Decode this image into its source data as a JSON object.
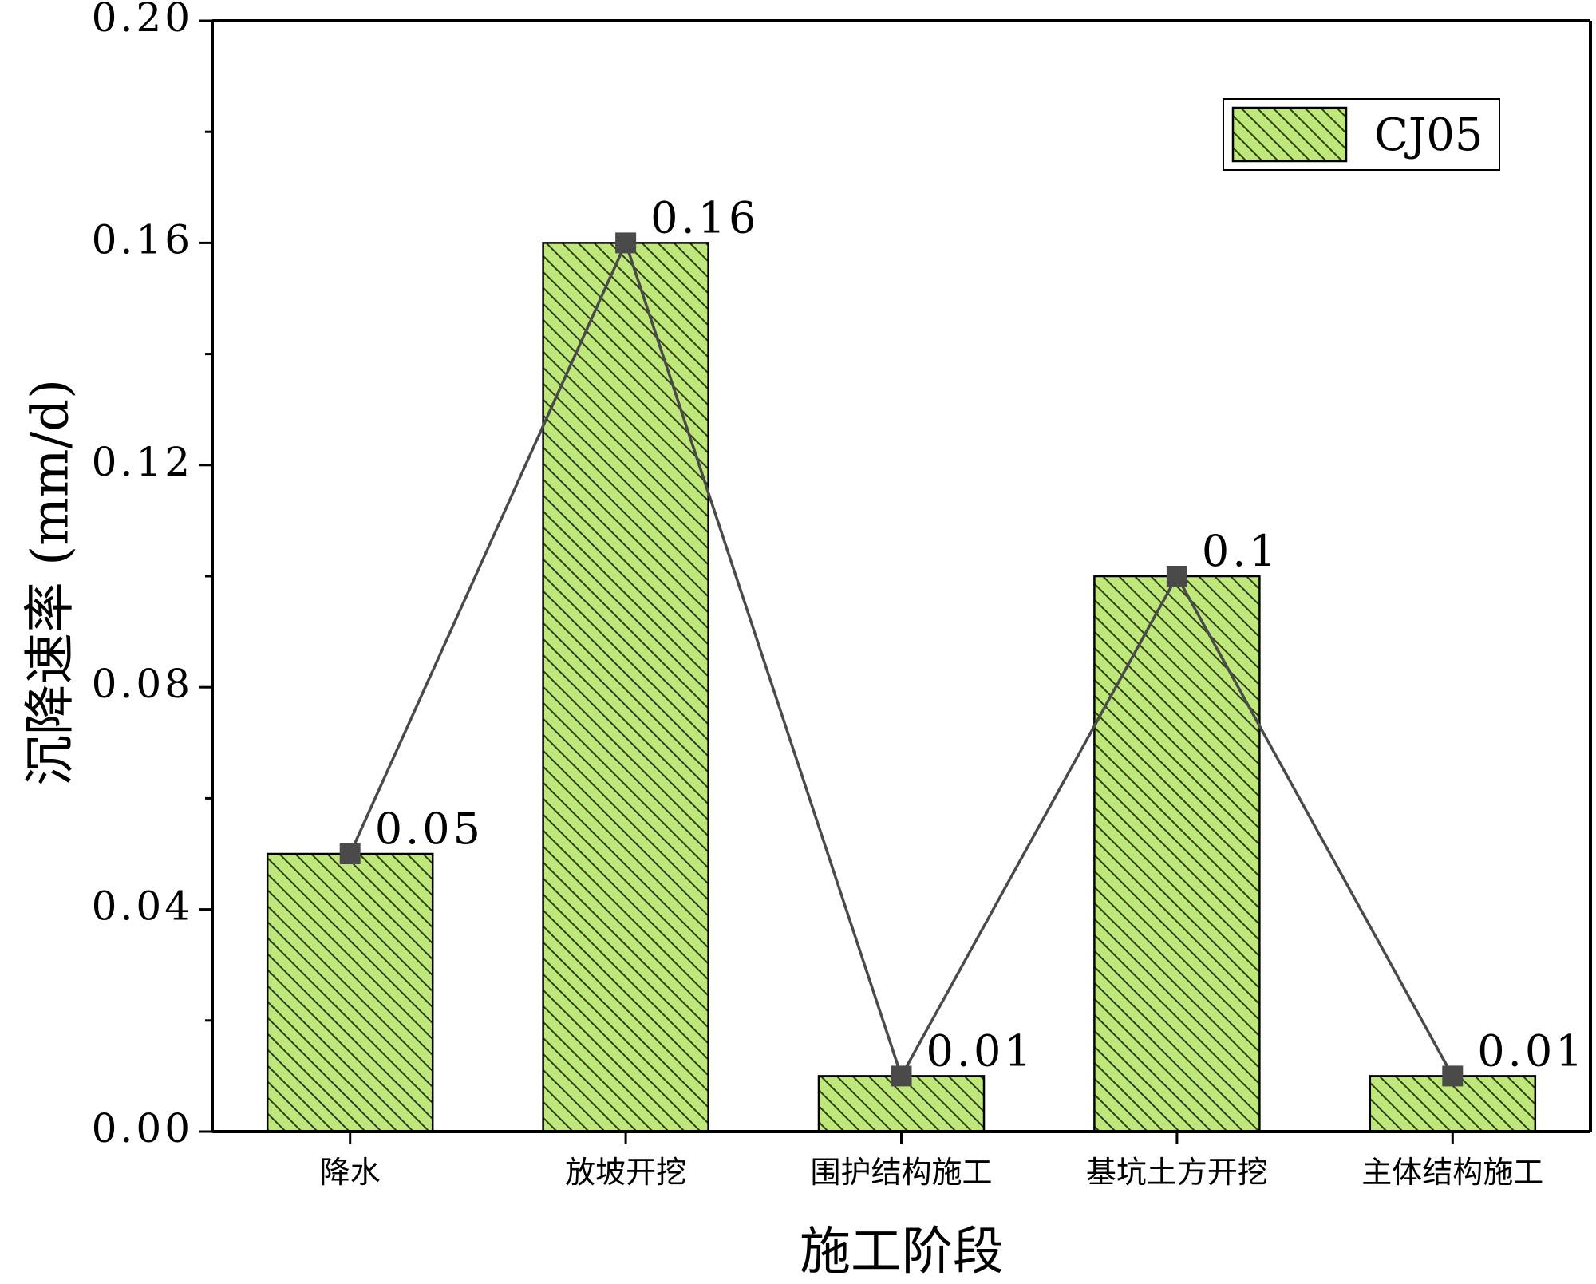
{
  "chart_data": {
    "type": "bar",
    "title": "",
    "xlabel": "施工阶段",
    "ylabel": "沉降速率 (mm/d)",
    "ylim": [
      0,
      0.2
    ],
    "y_ticks": [
      "0.00",
      "0.04",
      "0.08",
      "0.12",
      "0.16",
      "0.20"
    ],
    "categories": [
      "降水",
      "放坡开挖",
      "围护结构施工",
      "基坑土方开挖",
      "主体结构施工"
    ],
    "series": [
      {
        "name": "CJ05",
        "values": [
          0.05,
          0.16,
          0.01,
          0.1,
          0.01
        ],
        "data_labels": [
          "0.05",
          "0.16",
          "0.01",
          "0.1",
          "0.01"
        ],
        "overlay_line": true
      }
    ],
    "legend_position": "top-right",
    "grid": false,
    "colors": {
      "bar_fill": "#bfe87a",
      "bar_hatch": "#2f3a14",
      "bar_edge": "#000000",
      "line": "#4a4a4a",
      "marker": "#4a4a4a",
      "axis": "#000000"
    }
  }
}
